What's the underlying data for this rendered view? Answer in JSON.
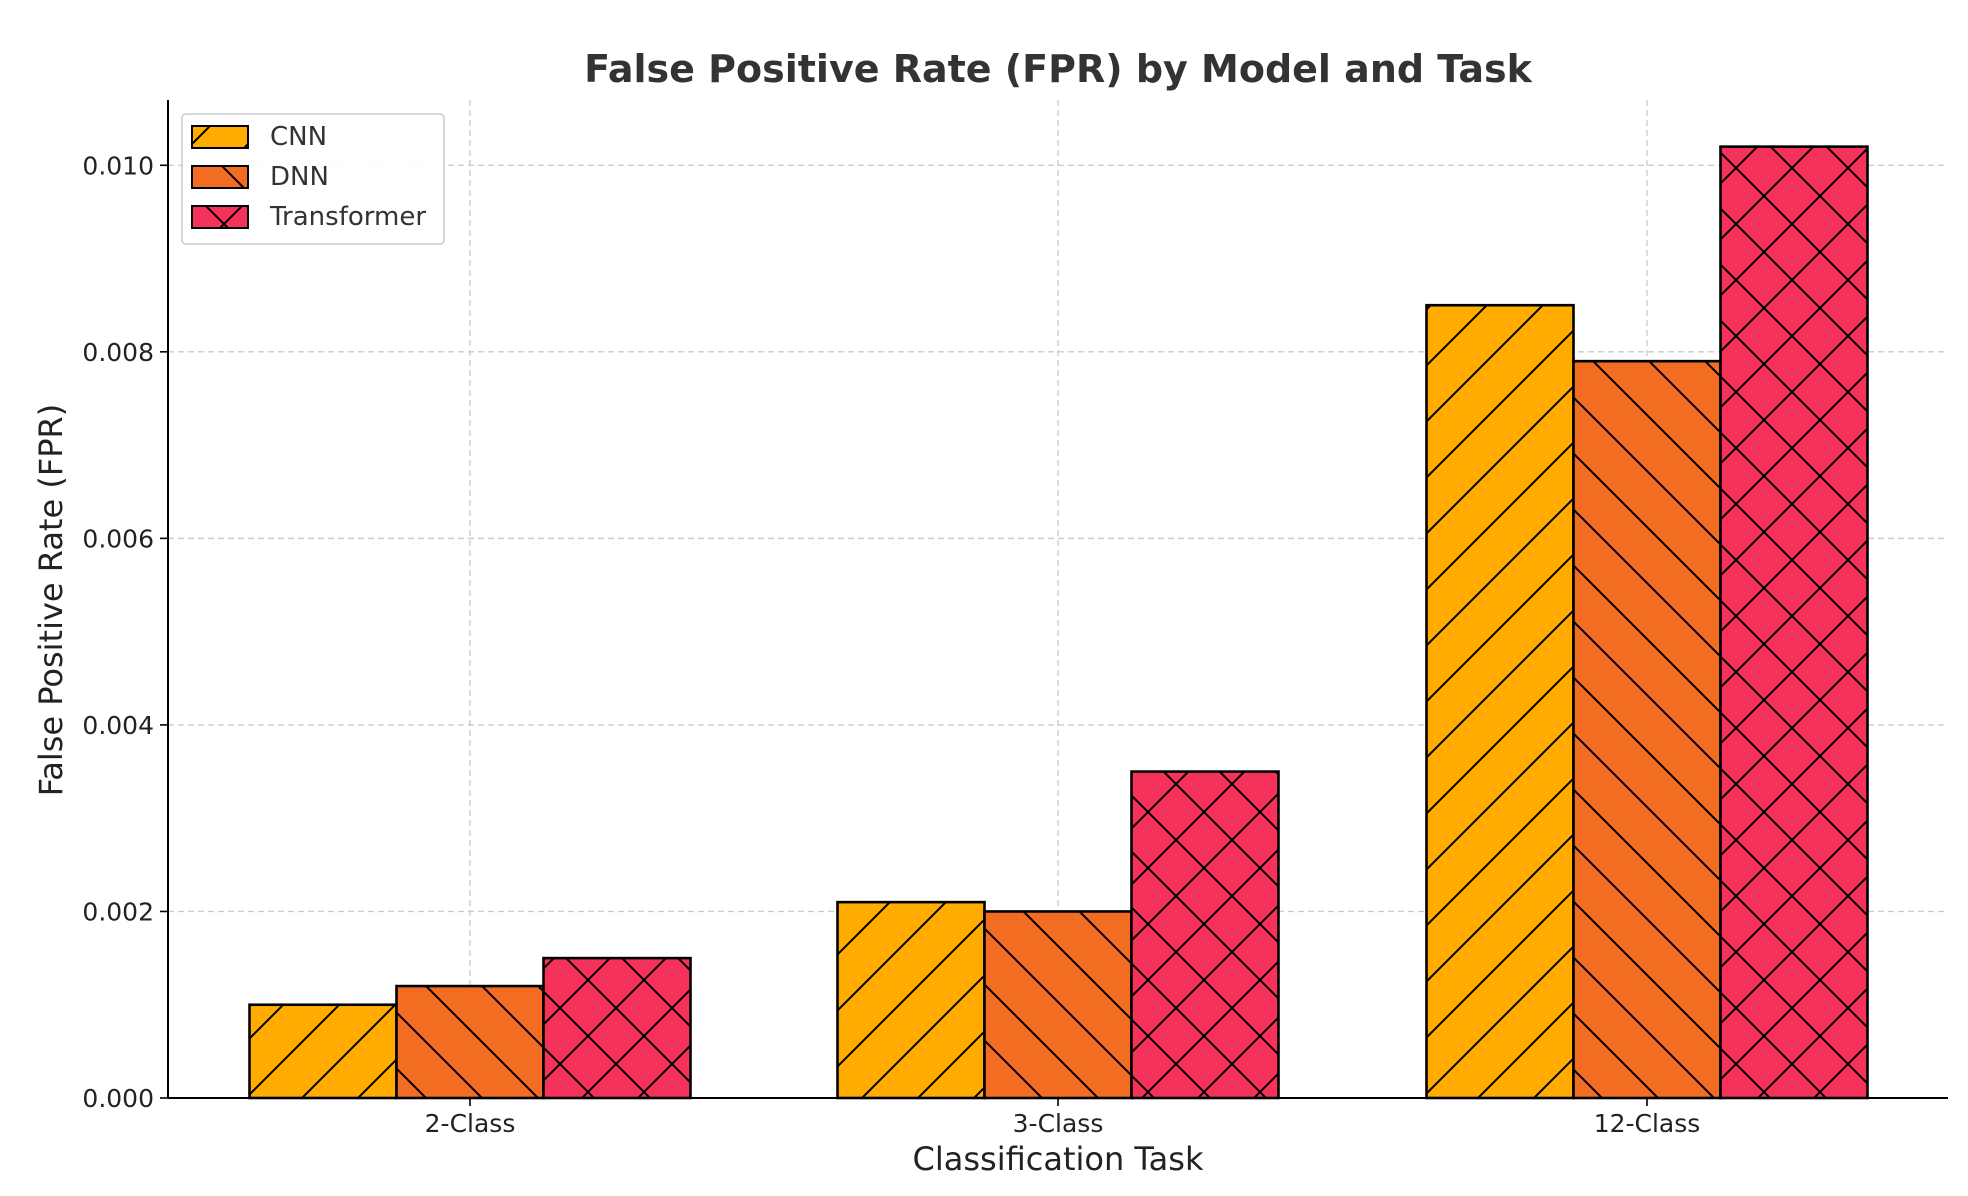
{
  "chart_data": {
    "type": "bar",
    "title": "False Positive Rate (FPR) by Model and Task",
    "xlabel": "Classification Task",
    "ylabel": "False Positive Rate (FPR)",
    "categories": [
      "2-Class",
      "3-Class",
      "12-Class"
    ],
    "ylim": [
      0,
      0.0107
    ],
    "yticks": [
      0.0,
      0.002,
      0.004,
      0.006,
      0.008,
      0.01
    ],
    "ytick_labels": [
      "0.000",
      "0.002",
      "0.004",
      "0.006",
      "0.008",
      "0.010"
    ],
    "grid": true,
    "legend_position": "top-left",
    "series": [
      {
        "name": "CNN",
        "color": "#FFAB00",
        "hatch": "forward-diagonal",
        "values": [
          0.001,
          0.0021,
          0.0085
        ]
      },
      {
        "name": "DNN",
        "color": "#F26D21",
        "hatch": "back-diagonal",
        "values": [
          0.0012,
          0.002,
          0.0079
        ]
      },
      {
        "name": "Transformer",
        "color": "#F5325A",
        "hatch": "crosshatch",
        "values": [
          0.0015,
          0.0035,
          0.0102
        ]
      }
    ]
  }
}
